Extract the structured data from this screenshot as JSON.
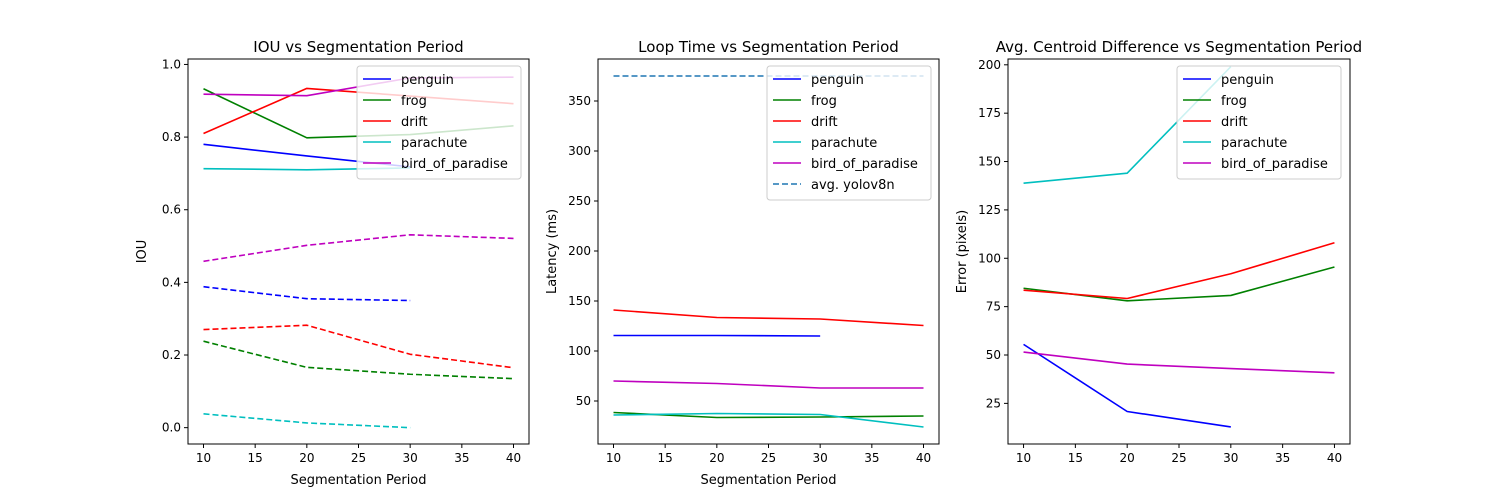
{
  "chart_data": [
    {
      "type": "line",
      "title": "IOU vs Segmentation Period",
      "xlabel": "Segmentation Period",
      "ylabel": "IOU",
      "xlim": [
        8.5,
        41.5
      ],
      "ylim": [
        -0.045,
        1.015
      ],
      "xticks": [
        10,
        15,
        20,
        25,
        30,
        35,
        40
      ],
      "yticks": [
        0.0,
        0.2,
        0.4,
        0.6,
        0.8,
        1.0
      ],
      "ytick_labels": [
        "0.0",
        "0.2",
        "0.4",
        "0.6",
        "0.8",
        "1.0"
      ],
      "legend": "top-right",
      "series": [
        {
          "name": "penguin",
          "color": "#0000ff",
          "dash": false,
          "x": [
            10,
            20,
            30
          ],
          "y": [
            0.78,
            0.748,
            0.718
          ]
        },
        {
          "name": "frog",
          "color": "#008000",
          "dash": false,
          "x": [
            10,
            20,
            30,
            40
          ],
          "y": [
            0.933,
            0.798,
            0.807,
            0.831
          ]
        },
        {
          "name": "drift",
          "color": "#ff0000",
          "dash": false,
          "x": [
            10,
            20,
            30,
            40
          ],
          "y": [
            0.81,
            0.934,
            0.913,
            0.892
          ]
        },
        {
          "name": "parachute",
          "color": "#00bfbf",
          "dash": false,
          "x": [
            10,
            20,
            30
          ],
          "y": [
            0.713,
            0.71,
            0.715
          ]
        },
        {
          "name": "bird_of_paradise",
          "color": "#bf00bf",
          "dash": false,
          "x": [
            10,
            20,
            30,
            40
          ],
          "y": [
            0.918,
            0.914,
            0.963,
            0.965
          ]
        },
        {
          "color": "#0000ff",
          "dash": true,
          "x": [
            10,
            20,
            30
          ],
          "y": [
            0.388,
            0.355,
            0.35
          ]
        },
        {
          "color": "#008000",
          "dash": true,
          "x": [
            10,
            20,
            30,
            40
          ],
          "y": [
            0.238,
            0.166,
            0.147,
            0.135
          ]
        },
        {
          "color": "#ff0000",
          "dash": true,
          "x": [
            10,
            20,
            30,
            40
          ],
          "y": [
            0.27,
            0.282,
            0.202,
            0.165
          ]
        },
        {
          "color": "#00bfbf",
          "dash": true,
          "x": [
            10,
            20,
            30
          ],
          "y": [
            0.038,
            0.013,
            0.0
          ]
        },
        {
          "color": "#bf00bf",
          "dash": true,
          "x": [
            10,
            20,
            30,
            40
          ],
          "y": [
            0.458,
            0.502,
            0.531,
            0.521
          ]
        }
      ]
    },
    {
      "type": "line",
      "title": "Loop Time vs Segmentation Period",
      "xlabel": "Segmentation Period",
      "ylabel": "Latency (ms)",
      "xlim": [
        8.5,
        41.5
      ],
      "ylim": [
        7,
        392
      ],
      "xticks": [
        10,
        15,
        20,
        25,
        30,
        35,
        40
      ],
      "yticks": [
        50,
        100,
        150,
        200,
        250,
        300,
        350
      ],
      "ytick_labels": [
        "50",
        "100",
        "150",
        "200",
        "250",
        "300",
        "350"
      ],
      "legend": "top-right",
      "series": [
        {
          "name": "penguin",
          "color": "#0000ff",
          "dash": false,
          "x": [
            10,
            20,
            30
          ],
          "y": [
            115.5,
            115.5,
            115
          ]
        },
        {
          "name": "frog",
          "color": "#008000",
          "dash": false,
          "x": [
            10,
            20,
            30,
            40
          ],
          "y": [
            38.5,
            33.5,
            34,
            35
          ]
        },
        {
          "name": "drift",
          "color": "#ff0000",
          "dash": false,
          "x": [
            10,
            20,
            30,
            40
          ],
          "y": [
            141,
            133.5,
            132,
            125.5
          ]
        },
        {
          "name": "parachute",
          "color": "#00bfbf",
          "dash": false,
          "x": [
            10,
            20,
            30,
            40
          ],
          "y": [
            36,
            37.5,
            36.5,
            24
          ]
        },
        {
          "name": "bird_of_paradise",
          "color": "#bf00bf",
          "dash": false,
          "x": [
            10,
            20,
            30,
            40
          ],
          "y": [
            70,
            67.5,
            63,
            63
          ]
        },
        {
          "name": "avg. yolov8n",
          "color": "#1f77b4",
          "dash": true,
          "x": [
            10,
            40
          ],
          "y": [
            375,
            375
          ]
        }
      ]
    },
    {
      "type": "line",
      "title": "Avg. Centroid Difference vs Segmentation Period",
      "xlabel": "",
      "ylabel": "Error (pixels)",
      "xlim": [
        8.5,
        41.5
      ],
      "ylim": [
        4,
        203
      ],
      "xticks": [
        10,
        15,
        20,
        25,
        30,
        35,
        40
      ],
      "yticks": [
        25,
        50,
        75,
        100,
        125,
        150,
        175,
        200
      ],
      "ytick_labels": [
        "25",
        "50",
        "75",
        "100",
        "125",
        "150",
        "175",
        "200"
      ],
      "legend": "top-right",
      "series": [
        {
          "name": "penguin",
          "color": "#0000ff",
          "dash": false,
          "x": [
            10,
            20,
            30
          ],
          "y": [
            55.5,
            20.8,
            12.8
          ]
        },
        {
          "name": "frog",
          "color": "#008000",
          "dash": false,
          "x": [
            10,
            20,
            30,
            40
          ],
          "y": [
            84.5,
            78,
            80.8,
            95.5
          ]
        },
        {
          "name": "drift",
          "color": "#ff0000",
          "dash": false,
          "x": [
            10,
            20,
            30,
            40
          ],
          "y": [
            83.5,
            79.2,
            92,
            108
          ]
        },
        {
          "name": "parachute",
          "color": "#00bfbf",
          "dash": false,
          "x": [
            10,
            20,
            30
          ],
          "y": [
            138.8,
            144,
            199
          ]
        },
        {
          "name": "bird_of_paradise",
          "color": "#bf00bf",
          "dash": false,
          "x": [
            10,
            20,
            30,
            40
          ],
          "y": [
            51.5,
            45.3,
            43,
            40.8
          ]
        }
      ]
    }
  ]
}
